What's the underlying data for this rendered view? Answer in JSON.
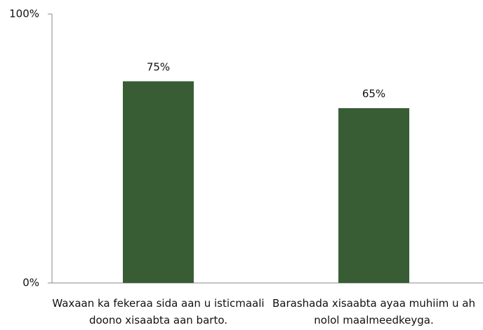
{
  "chart_data": {
    "type": "bar",
    "categories": [
      "Waxaan ka fekeraa sida aan u isticmaali doono xisaabta aan barto.",
      "Barashada xisaabta ayaa muhiim u ah nolol maalmeedkeyga."
    ],
    "values": [
      75,
      65
    ],
    "value_labels": [
      "75%",
      "65%"
    ],
    "color": "#385d35",
    "ylim": [
      0,
      100
    ],
    "yticks": [
      {
        "value": 0,
        "label": "0%"
      },
      {
        "value": 100,
        "label": "100%"
      }
    ],
    "grid": false
  }
}
